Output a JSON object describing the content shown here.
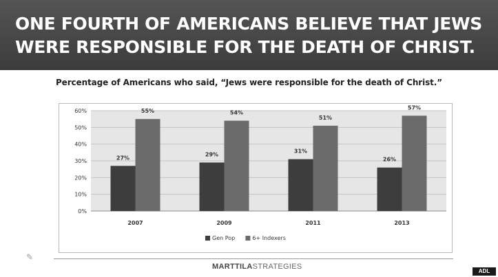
{
  "header": {
    "title": "ONE FOURTH OF AMERICANS BELIEVE THAT JEWS WERE RESPONSIBLE FOR THE DEATH OF CHRIST."
  },
  "subtitle": "Percentage of Americans who said, “Jews were responsible for the death of Christ.”",
  "chart_data": {
    "type": "bar",
    "title": "",
    "xlabel": "",
    "ylabel": "",
    "categories": [
      "2007",
      "2009",
      "2011",
      "2013"
    ],
    "series": [
      {
        "name": "Gen Pop",
        "values": [
          27,
          29,
          31,
          26
        ],
        "labels": [
          "27%",
          "29%",
          "31%",
          "26%"
        ],
        "color": "#3d3d3d"
      },
      {
        "name": "6+ Indexers",
        "values": [
          55,
          54,
          51,
          57
        ],
        "labels": [
          "55%",
          "54%",
          "51%",
          "57%"
        ],
        "color": "#6b6b6b"
      }
    ],
    "ylim": [
      0,
      60
    ],
    "yticks": [
      "0%",
      "10%",
      "20%",
      "30%",
      "40%",
      "50%",
      "60%"
    ],
    "grid": true,
    "legend_position": "bottom",
    "plot_background": "#e6e6e6"
  },
  "footer": {
    "logo_bold": "MARTTILA",
    "logo_light": "STRATEGIES",
    "badge": "ADL"
  }
}
